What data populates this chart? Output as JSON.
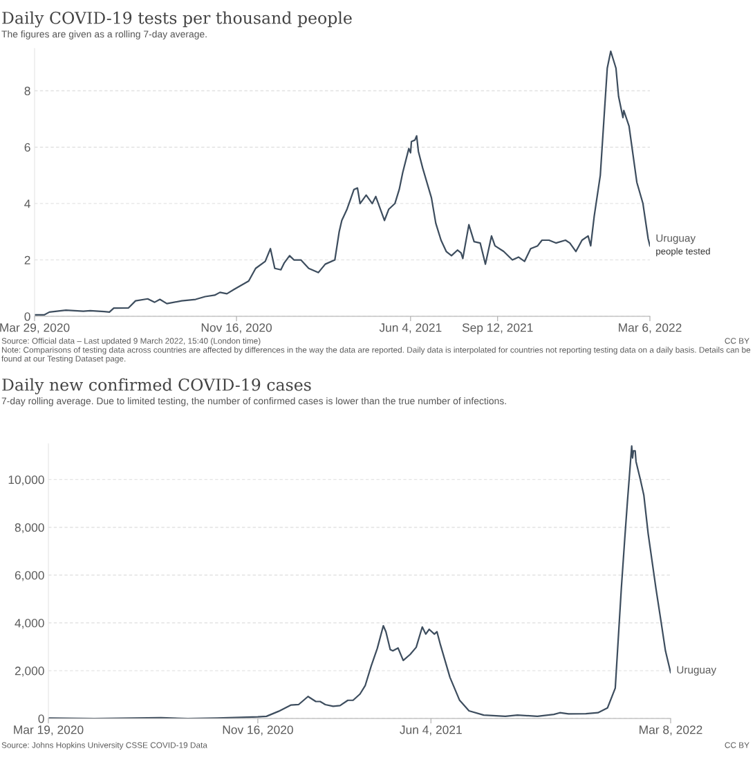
{
  "chart_data": [
    {
      "type": "line",
      "title": "Daily COVID-19 tests per thousand people",
      "subtitle": "The figures are given as a rolling 7-day average.",
      "xlim": [
        "2020-03-29",
        "2022-03-06"
      ],
      "xticks": [
        {
          "value": "2020-03-29",
          "label": "Mar 29, 2020"
        },
        {
          "value": "2020-11-16",
          "label": "Nov 16, 2020"
        },
        {
          "value": "2021-06-04",
          "label": "Jun 4, 2021"
        },
        {
          "value": "2021-09-12",
          "label": "Sep 12, 2021"
        },
        {
          "value": "2022-03-06",
          "label": "Mar 6, 2022"
        }
      ],
      "ylim": [
        0,
        9.5
      ],
      "yticks": [
        0,
        2,
        4,
        6,
        8
      ],
      "grid": "y",
      "legend": false,
      "x": [
        "2020-03-29",
        "2020-04-09",
        "2020-04-15",
        "2020-05-04",
        "2020-05-24",
        "2020-06-01",
        "2020-06-17",
        "2020-06-23",
        "2020-06-28",
        "2020-07-15",
        "2020-07-23",
        "2020-08-06",
        "2020-08-14",
        "2020-08-20",
        "2020-08-28",
        "2020-09-14",
        "2020-09-30",
        "2020-10-11",
        "2020-10-22",
        "2020-10-28",
        "2020-11-05",
        "2020-11-13",
        "2020-11-30",
        "2020-12-08",
        "2020-12-19",
        "2020-12-25",
        "2020-12-30",
        "2021-01-06",
        "2021-01-10",
        "2021-01-16",
        "2021-01-21",
        "2021-01-29",
        "2021-02-07",
        "2021-02-18",
        "2021-02-26",
        "2021-03-09",
        "2021-03-14",
        "2021-03-17",
        "2021-03-23",
        "2021-03-31",
        "2021-04-04",
        "2021-04-07",
        "2021-04-14",
        "2021-04-21",
        "2021-04-25",
        "2021-05-05",
        "2021-05-10",
        "2021-05-17",
        "2021-05-22",
        "2021-05-26",
        "2021-06-02",
        "2021-06-04",
        "2021-06-05",
        "2021-06-09",
        "2021-06-11",
        "2021-06-13",
        "2021-06-18",
        "2021-06-28",
        "2021-07-03",
        "2021-07-09",
        "2021-07-15",
        "2021-07-21",
        "2021-07-28",
        "2021-08-01",
        "2021-08-03",
        "2021-08-10",
        "2021-08-16",
        "2021-08-23",
        "2021-08-29",
        "2021-09-05",
        "2021-09-09",
        "2021-09-19",
        "2021-09-29",
        "2021-10-06",
        "2021-10-13",
        "2021-10-20",
        "2021-10-28",
        "2021-11-02",
        "2021-11-10",
        "2021-11-18",
        "2021-11-29",
        "2021-12-04",
        "2021-12-11",
        "2021-12-18",
        "2021-12-25",
        "2021-12-28",
        "2022-01-01",
        "2022-01-08",
        "2022-01-12",
        "2022-01-16",
        "2022-01-20",
        "2022-01-23",
        "2022-01-26",
        "2022-01-29",
        "2022-02-03",
        "2022-02-04",
        "2022-02-10",
        "2022-02-19",
        "2022-02-26",
        "2022-03-04",
        "2022-03-06"
      ],
      "series": [
        {
          "name": "Uruguay",
          "color": "#3d4d5e",
          "values": [
            0.05,
            0.05,
            0.15,
            0.22,
            0.18,
            0.2,
            0.17,
            0.15,
            0.29,
            0.3,
            0.55,
            0.62,
            0.5,
            0.6,
            0.45,
            0.55,
            0.6,
            0.7,
            0.75,
            0.85,
            0.8,
            0.95,
            1.25,
            1.7,
            1.95,
            2.4,
            1.7,
            1.65,
            1.9,
            2.15,
            2.0,
            2.0,
            1.7,
            1.55,
            1.85,
            2.0,
            3.0,
            3.4,
            3.8,
            4.5,
            4.55,
            4.0,
            4.3,
            4.0,
            4.25,
            3.4,
            3.8,
            4.0,
            4.5,
            5.1,
            5.95,
            5.8,
            6.2,
            6.25,
            6.4,
            5.85,
            5.25,
            4.2,
            3.3,
            2.7,
            2.3,
            2.15,
            2.35,
            2.25,
            2.05,
            3.25,
            2.65,
            2.6,
            1.85,
            2.85,
            2.5,
            2.3,
            2.0,
            2.1,
            1.95,
            2.4,
            2.5,
            2.7,
            2.7,
            2.6,
            2.7,
            2.6,
            2.3,
            2.7,
            2.85,
            2.5,
            3.55,
            5.0,
            6.9,
            8.8,
            9.4,
            9.1,
            8.8,
            7.8,
            7.05,
            7.3,
            6.75,
            4.75,
            4.0,
            2.75,
            2.5
          ]
        }
      ],
      "annotations": [
        "Source: Official data – Last updated 9 March 2022, 15:40 (London time)",
        "CC BY",
        "Note: Comparisons of testing data across countries are affected by differences in the way the data are reported. Daily data is interpolated for countries not reporting testing data on a daily basis. Details can be found at our Testing Dataset page.",
        {
          "text": "people tested",
          "x": "2022-03-06",
          "y": 2.5
        }
      ]
    },
    {
      "type": "line",
      "title": "Daily new confirmed COVID-19 cases",
      "subtitle": "7-day rolling average. Due to limited testing, the number of confirmed cases is lower than the true number of infections.",
      "xlim": [
        "2020-03-19",
        "2022-03-08"
      ],
      "xticks": [
        {
          "value": "2020-03-19",
          "label": "Mar 19, 2020"
        },
        {
          "value": "2020-11-16",
          "label": "Nov 16, 2020"
        },
        {
          "value": "2021-06-04",
          "label": "Jun 4, 2021"
        },
        {
          "value": "2022-03-08",
          "label": "Mar 8, 2022"
        }
      ],
      "ylim": [
        0,
        11500
      ],
      "yticks": [
        {
          "value": 0,
          "label": "0"
        },
        {
          "value": 2000,
          "label": "2,000"
        },
        {
          "value": 4000,
          "label": "4,000"
        },
        {
          "value": 6000,
          "label": "6,000"
        },
        {
          "value": 8000,
          "label": "8,000"
        },
        {
          "value": 10000,
          "label": "10,000"
        }
      ],
      "grid": "y",
      "legend": false,
      "x": [
        "2020-03-19",
        "2020-05-11",
        "2020-07-27",
        "2020-08-27",
        "2020-09-30",
        "2020-10-28",
        "2020-11-16",
        "2020-11-26",
        "2020-12-10",
        "2020-12-24",
        "2021-01-02",
        "2021-01-13",
        "2021-01-22",
        "2021-01-27",
        "2021-02-02",
        "2021-02-11",
        "2021-02-19",
        "2021-02-28",
        "2021-03-06",
        "2021-03-14",
        "2021-03-20",
        "2021-03-27",
        "2021-04-03",
        "2021-04-10",
        "2021-04-13",
        "2021-04-18",
        "2021-04-21",
        "2021-04-27",
        "2021-05-03",
        "2021-05-11",
        "2021-05-18",
        "2021-05-25",
        "2021-05-29",
        "2021-06-02",
        "2021-06-08",
        "2021-06-11",
        "2021-06-15",
        "2021-06-26",
        "2021-07-07",
        "2021-07-18",
        "2021-08-04",
        "2021-08-29",
        "2021-09-12",
        "2021-10-05",
        "2021-10-24",
        "2021-10-31",
        "2021-11-10",
        "2021-11-30",
        "2021-12-14",
        "2021-12-25",
        "2022-01-03",
        "2022-01-10",
        "2022-01-14",
        "2022-01-17",
        "2022-01-22",
        "2022-01-23",
        "2022-01-24",
        "2022-01-26",
        "2022-01-27",
        "2022-02-01",
        "2022-02-05",
        "2022-02-10",
        "2022-02-19",
        "2022-02-25",
        "2022-03-02",
        "2022-03-08"
      ],
      "series": [
        {
          "name": "Uruguay",
          "color": "#3d4d5e",
          "values": [
            20,
            0,
            30,
            0,
            20,
            50,
            70,
            90,
            300,
            560,
            580,
            920,
            710,
            710,
            580,
            510,
            540,
            760,
            760,
            1020,
            1370,
            2200,
            2930,
            3880,
            3630,
            2880,
            2830,
            2950,
            2430,
            2680,
            2980,
            3830,
            3530,
            3730,
            3530,
            3630,
            3080,
            1720,
            770,
            320,
            140,
            90,
            140,
            90,
            170,
            240,
            190,
            200,
            240,
            440,
            1270,
            5440,
            7540,
            9050,
            11400,
            10900,
            11200,
            11200,
            10750,
            10000,
            9350,
            7740,
            5440,
            4030,
            2830,
            1920
          ]
        }
      ],
      "annotations": [
        "Source: Johns Hopkins University CSSE COVID-19 Data",
        "CC BY"
      ]
    }
  ]
}
